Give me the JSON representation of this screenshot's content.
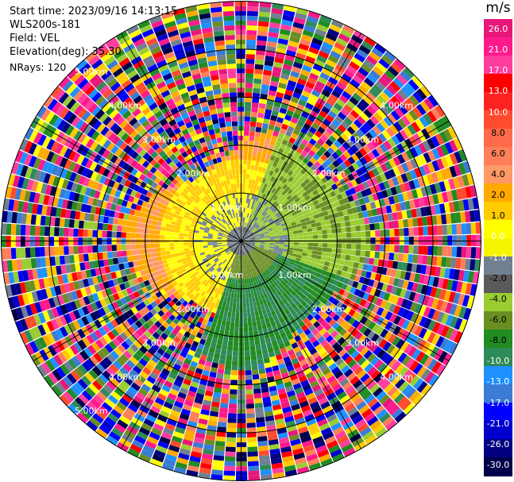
{
  "info": {
    "start_time": "Start time: 2023/09/16 14:13:15",
    "instrument": "WLS200s-181",
    "field": "Field: VEL",
    "elevation": "Elevation(deg): 35.30",
    "nrays": "NRays: 120"
  },
  "colorbar": {
    "unit": "m/s",
    "ticks": [
      "26.0",
      "21.0",
      "17.0",
      "13.0",
      "10.0",
      "8.0",
      "6.0",
      "4.0",
      "2.0",
      "1.0",
      "0.0",
      "-1.0",
      "-2.0",
      "-4.0",
      "-6.0",
      "-8.0",
      "-10.0",
      "-13.0",
      "-17.0",
      "-21.0",
      "-26.0",
      "-30.0"
    ],
    "colors": [
      "#e8177a",
      "#ff1a8c",
      "#ff3d9e",
      "#ff0000",
      "#ff2222",
      "#ff4c2e",
      "#ff6a4a",
      "#ff7f5a",
      "#ff9966",
      "#ffaa00",
      "#ffcc00",
      "#ffff00",
      "#f5f500",
      "#708090",
      "#5a5a5a",
      "#9acd32",
      "#6b8e23",
      "#228b22",
      "#2e8b57",
      "#1e90ff",
      "#3a7bd5",
      "#0000ff",
      "#0000cd",
      "#000080",
      "#00004a"
    ]
  },
  "chart_data": {
    "type": "ppi",
    "nrays": 120,
    "elevation_deg": 35.3,
    "rings_km": [
      1.0,
      2.0,
      3.0,
      4.0,
      5.0
    ],
    "ring_labels": [
      "1.00km",
      "2.00km",
      "3.00km",
      "4.00km",
      "5.00km"
    ],
    "colormap_values": [
      26.0,
      21.0,
      17.0,
      13.0,
      10.0,
      8.0,
      6.0,
      4.0,
      2.0,
      1.0,
      0.0,
      -1.0,
      -2.0,
      -4.0,
      -6.0,
      -8.0,
      -10.0,
      -13.0,
      -17.0,
      -21.0,
      -26.0,
      -30.0
    ],
    "vmin": -30.0,
    "vmax": 30.0
  }
}
